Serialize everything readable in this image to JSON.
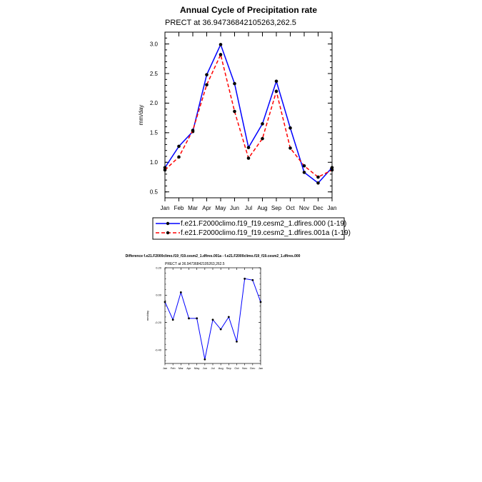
{
  "chart_data": [
    {
      "type": "line",
      "title": "Annual Cycle of Precipitation rate",
      "subtitle": "PRECT at 36.94736842105263,262.5",
      "ylabel": "mm/day",
      "xlabel": "",
      "ylim": [
        0.4,
        3.2
      ],
      "yticks": [
        0.5,
        1.0,
        1.5,
        2.0,
        2.5,
        3.0
      ],
      "ytick_labels": [
        "0.5",
        "1.0",
        "1.5",
        "2.0",
        "2.5",
        "3.0"
      ],
      "categories": [
        "Jan",
        "Feb",
        "Mar",
        "Apr",
        "May",
        "Jun",
        "Jul",
        "Aug",
        "Sep",
        "Oct",
        "Nov",
        "Dec",
        "Jan"
      ],
      "legend_position": "bottom",
      "series": [
        {
          "name": "f.e21.F2000climo.f19_f19.cesm2_1.dfires.000 (1-19)",
          "color": "#0000ff",
          "dash": "solid",
          "values": [
            0.91,
            1.27,
            1.52,
            2.48,
            2.99,
            2.33,
            1.25,
            1.65,
            2.37,
            1.58,
            0.83,
            0.65,
            0.91
          ]
        },
        {
          "name": "f.e21.F2000climo.f19_f19.cesm2_1.dfires.001a (1-19)",
          "color": "#ff0000",
          "dash": "dashed",
          "values": [
            0.87,
            1.09,
            1.54,
            2.31,
            2.82,
            1.86,
            1.07,
            1.4,
            2.2,
            1.24,
            0.94,
            0.75,
            0.87
          ]
        }
      ]
    },
    {
      "type": "line",
      "title": "Difference f.e21.F2000climo.f19_f19.cesm2_1.dfires.001a - f.e21.F2000climo.f19_f19.cesm2_1.dfires.000",
      "subtitle": "PRECT at 36.94736842105263,262.5",
      "ylabel": "mm/day",
      "xlabel": "",
      "ylim": [
        -0.5,
        0.2
      ],
      "yticks": [
        -0.4,
        -0.2,
        0.0,
        0.2
      ],
      "ytick_labels": [
        "-0.40",
        "-0.20",
        "0.00",
        "0.20"
      ],
      "categories": [
        "Jan",
        "Feb",
        "Mar",
        "Apr",
        "May",
        "Jun",
        "Jul",
        "Aug",
        "Sep",
        "Oct",
        "Nov",
        "Dec",
        "Jan"
      ],
      "series": [
        {
          "name": "difference",
          "color": "#0000ff",
          "dash": "solid",
          "values": [
            -0.05,
            -0.18,
            0.02,
            -0.17,
            -0.17,
            -0.47,
            -0.18,
            -0.25,
            -0.16,
            -0.34,
            0.12,
            0.11,
            -0.05
          ]
        }
      ]
    }
  ]
}
